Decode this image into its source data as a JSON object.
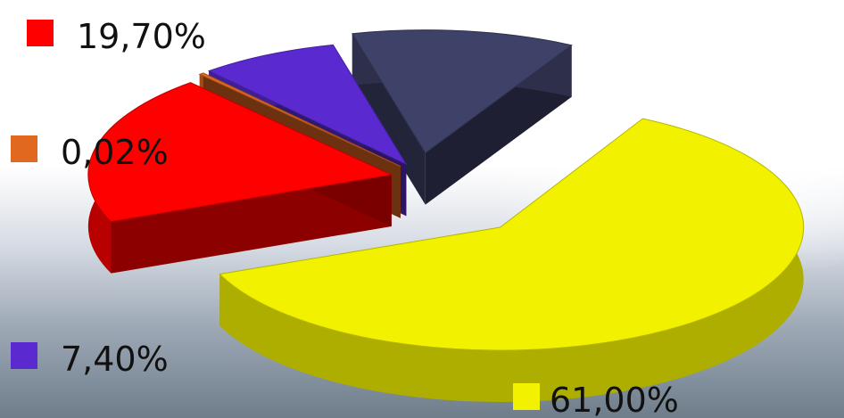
{
  "chart_data": {
    "type": "pie",
    "title": "",
    "style": "3d-exploded",
    "slices": [
      {
        "label": "61,00%",
        "value": 61.0,
        "color": "#f2f200"
      },
      {
        "label": "19,70%",
        "value": 19.7,
        "color": "#ff0000"
      },
      {
        "label": "0,02%",
        "value": 0.02,
        "color": "#e0691f"
      },
      {
        "label": "7,40%",
        "value": 7.4,
        "color": "#5a2ad0"
      },
      {
        "label": "",
        "value": 11.88,
        "color": "#3e4168"
      }
    ],
    "legend": {
      "placement": "left",
      "items": [
        {
          "label": "19,70%",
          "color": "#ff0000"
        },
        {
          "label": "0,02%",
          "color": "#e0691f"
        },
        {
          "label": "7,40%",
          "color": "#5a2ad0"
        },
        {
          "label": "61,00%",
          "color": "#f2f200"
        }
      ]
    }
  }
}
